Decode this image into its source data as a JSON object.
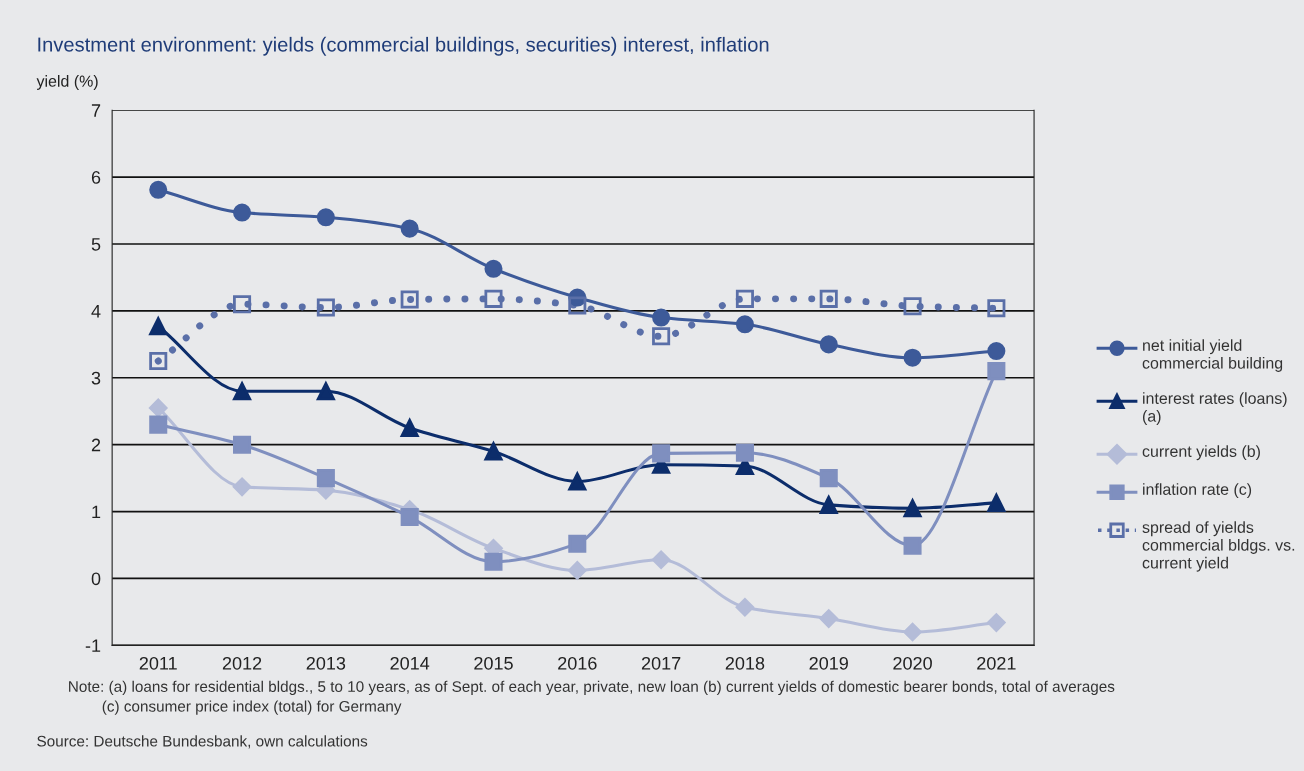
{
  "chart_data": {
    "type": "line",
    "title": "Investment environment: yields (commercial buildings, securities) interest, inflation",
    "ylabel": "yield (%)",
    "categories": [
      "2011",
      "2012",
      "2013",
      "2014",
      "2015",
      "2016",
      "2017",
      "2018",
      "2019",
      "2020",
      "2021"
    ],
    "ylim": [
      -1,
      7
    ],
    "yticks": [
      -1,
      0,
      1,
      2,
      3,
      4,
      5,
      6,
      7
    ],
    "grid": "y",
    "legend": "right",
    "series": [
      {
        "name": "net initial yield commercial building",
        "color": "#3d5a99",
        "marker": "circle",
        "line_style": "solid",
        "values": [
          5.81,
          5.47,
          5.4,
          5.23,
          4.63,
          4.2,
          3.9,
          3.8,
          3.5,
          3.3,
          3.4
        ]
      },
      {
        "name": "interest rates (loans) (a)",
        "color": "#0c2d6b",
        "marker": "triangle",
        "line_style": "solid",
        "values": [
          3.77,
          2.8,
          2.8,
          2.25,
          1.9,
          1.45,
          1.7,
          1.68,
          1.1,
          1.05,
          1.13
        ]
      },
      {
        "name": "current yields (b)",
        "color": "#b4bcd8",
        "marker": "diamond",
        "line_style": "solid",
        "values": [
          2.55,
          1.37,
          1.32,
          1.03,
          0.45,
          0.12,
          0.28,
          -0.43,
          -0.6,
          -0.8,
          -0.66
        ]
      },
      {
        "name": "inflation rate (c)",
        "color": "#7f8fbf",
        "marker": "square",
        "line_style": "solid",
        "values": [
          2.3,
          2.0,
          1.5,
          0.92,
          0.25,
          0.52,
          1.87,
          1.88,
          1.5,
          0.49,
          3.1
        ]
      },
      {
        "name": "spread of yields commercial bldgs. vs. current yield",
        "color": "#5a6fa8",
        "marker": "square",
        "line_style": "dotted",
        "values": [
          3.25,
          4.1,
          4.05,
          4.17,
          4.18,
          4.08,
          3.62,
          4.18,
          4.18,
          4.07,
          4.04
        ]
      }
    ],
    "annotations": [
      "Note: (a) loans for residential bldgs., 5 to 10 years, as of Sept. of each year, private, new loan (b) current yields of domestic bearer bonds, total of averages\n        (c) consumer price index (total) for Germany",
      "Source: Deutsche Bundesbank, own calculations"
    ]
  }
}
